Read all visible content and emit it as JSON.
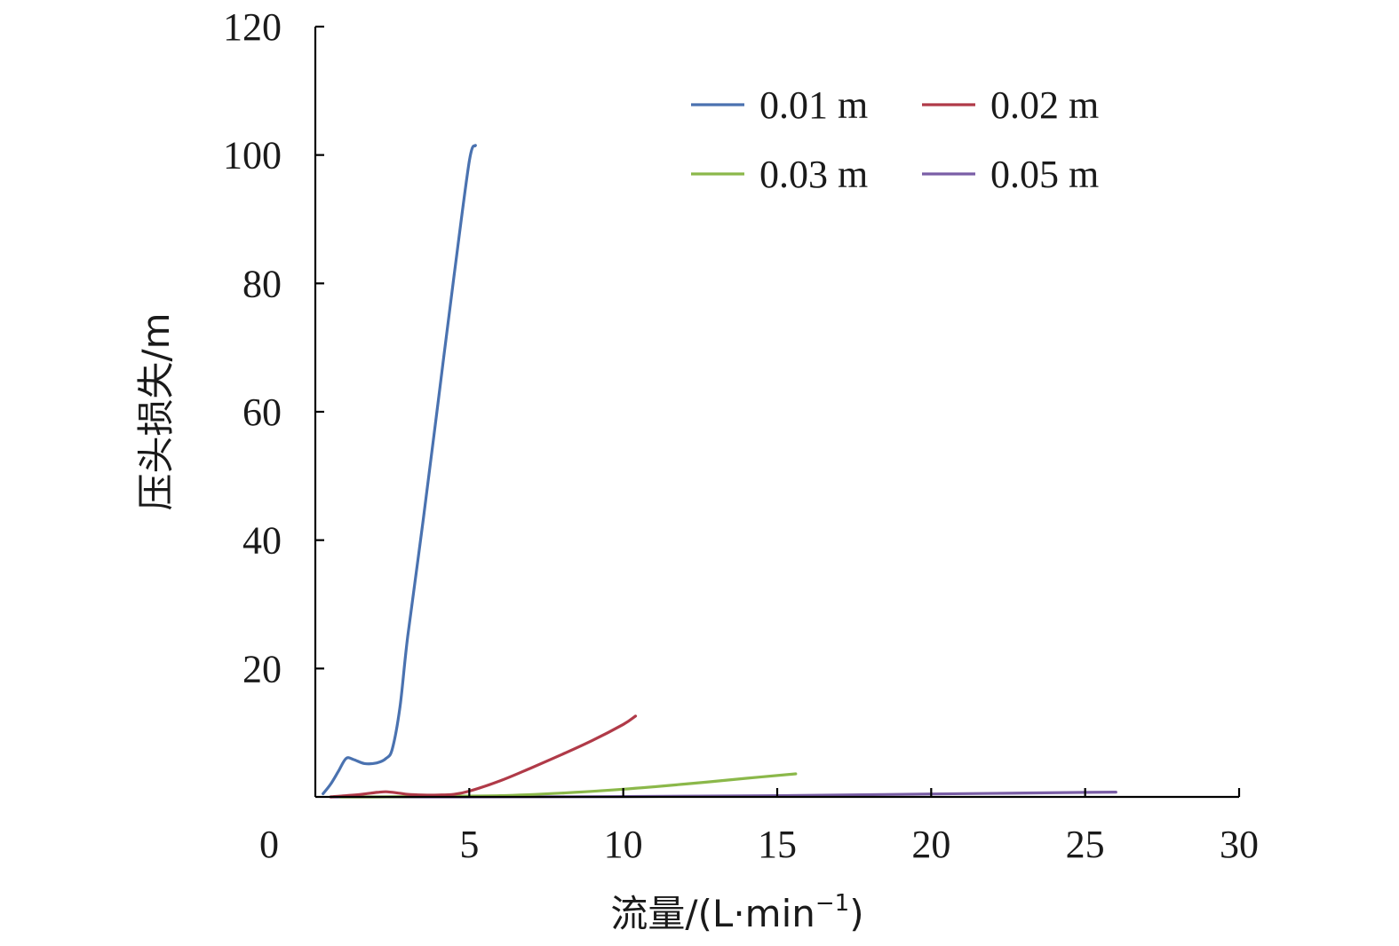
{
  "chart_data": {
    "type": "line",
    "title": "",
    "xlabel": "流量/(L·min⁻¹)",
    "ylabel": "压头损失/m",
    "xlim": [
      0,
      30
    ],
    "ylim": [
      0,
      120
    ],
    "x_ticks": [
      "0",
      "5",
      "10",
      "15",
      "20",
      "25",
      "30"
    ],
    "y_ticks": [
      "20",
      "40",
      "60",
      "80",
      "100",
      "120"
    ],
    "grid": false,
    "legend_position": "top-right",
    "series": [
      {
        "name": "0.01 m",
        "color": "#4a72b0",
        "x": [
          0.25,
          0.5,
          0.75,
          1.0,
          1.25,
          1.6,
          2.0,
          2.3,
          2.5,
          2.75,
          3.0,
          3.5,
          4.0,
          4.5,
          5.0,
          5.2
        ],
        "y": [
          0.5,
          2.0,
          4.0,
          6.0,
          5.8,
          5.2,
          5.3,
          6.0,
          7.5,
          14.0,
          25.0,
          43.0,
          62.0,
          81.0,
          99.0,
          101.5
        ]
      },
      {
        "name": "0.02 m",
        "color": "#b03a48",
        "x": [
          0.5,
          1.0,
          1.5,
          2.0,
          2.3,
          2.7,
          3.0,
          3.5,
          4.0,
          4.5,
          5.0,
          6.0,
          7.0,
          8.0,
          9.0,
          10.0,
          10.4
        ],
        "y": [
          0.0,
          0.2,
          0.4,
          0.7,
          0.8,
          0.6,
          0.4,
          0.3,
          0.3,
          0.4,
          0.9,
          2.5,
          4.5,
          6.6,
          8.8,
          11.3,
          12.6
        ]
      },
      {
        "name": "0.03 m",
        "color": "#8bb84a",
        "x": [
          0.8,
          2.0,
          4.0,
          6.0,
          8.0,
          10.0,
          12.0,
          14.0,
          15.6
        ],
        "y": [
          0.0,
          0.0,
          0.1,
          0.2,
          0.6,
          1.2,
          2.0,
          2.9,
          3.6
        ]
      },
      {
        "name": "0.05 m",
        "color": "#7a5ea6",
        "x": [
          0.5,
          5.0,
          10.0,
          15.0,
          20.0,
          25.0,
          26.0
        ],
        "y": [
          0.0,
          0.0,
          0.05,
          0.2,
          0.45,
          0.7,
          0.75
        ]
      }
    ]
  }
}
